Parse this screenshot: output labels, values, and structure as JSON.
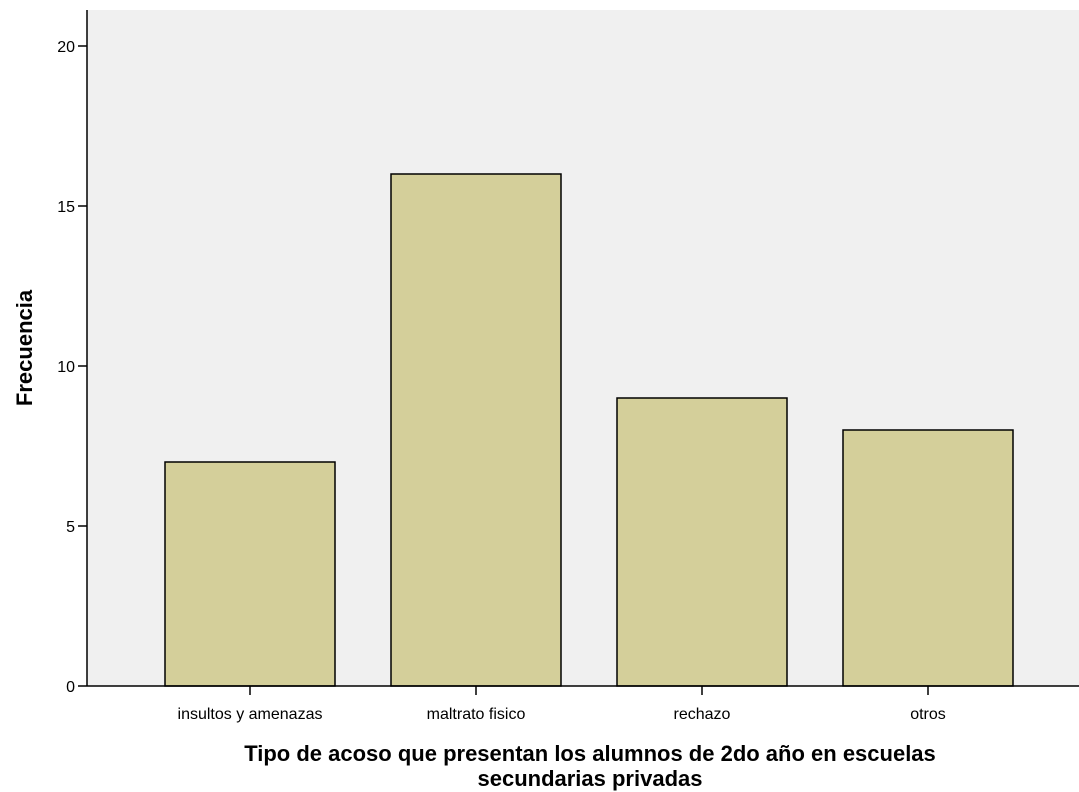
{
  "chart_data": {
    "type": "bar",
    "title": "",
    "categories": [
      "insultos y amenazas",
      "maltrato fisico",
      "rechazo",
      "otros"
    ],
    "values": [
      7,
      16,
      9,
      8
    ],
    "xlabel": "Tipo de acoso que presentan los alumnos de 2do año en escuelas secundarias privadas",
    "xlabel_lines": [
      "Tipo de acoso que presentan los alumnos de 2do año en escuelas",
      "secundarias privadas"
    ],
    "ylabel": "Frecuencia",
    "ylim": [
      0,
      21
    ],
    "yticks": [
      0,
      5,
      10,
      15,
      20
    ],
    "grid": false,
    "colors": {
      "bar_fill": "#d4cf9a",
      "bar_stroke": "#000000",
      "plot_background": "#f0f0f0"
    }
  }
}
